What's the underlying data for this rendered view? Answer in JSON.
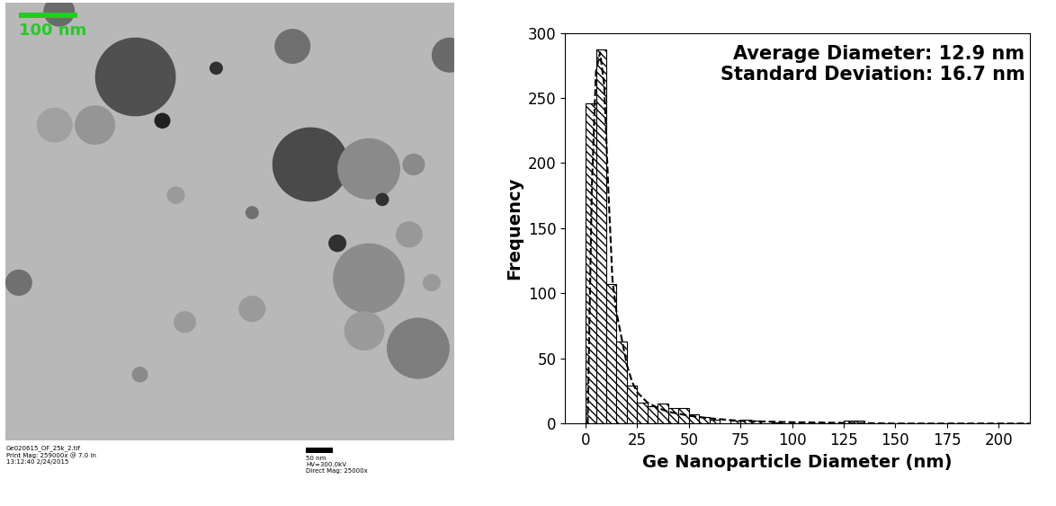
{
  "chart_data": {
    "type": "histogram",
    "x_label": "Ge Nanoparticle Diameter (nm)",
    "y_label": "Frequency",
    "annotations": [
      "Average Diameter: 12.9 nm",
      "Standard Deviation: 16.7 nm"
    ],
    "bins": [
      0,
      5,
      10,
      15,
      20,
      25,
      30,
      35,
      40,
      45,
      50,
      55,
      60,
      65,
      70,
      75,
      80,
      85,
      90,
      95,
      100,
      105,
      110,
      115,
      120,
      125,
      130,
      135
    ],
    "counts": [
      246,
      287,
      107,
      63,
      29,
      16,
      13,
      15,
      12,
      12,
      7,
      5,
      3,
      0,
      2,
      3,
      2,
      0,
      1,
      0,
      0,
      0,
      0,
      0,
      0,
      2,
      2
    ],
    "color": "#ffffff",
    "series": [
      {
        "type": "line",
        "line_style": "dashed",
        "color": "#000000",
        "x": [
          1,
          3,
          5,
          7,
          9,
          11,
          13,
          15,
          17.5,
          20,
          22.5,
          25,
          30,
          35,
          40,
          50,
          60,
          75,
          100,
          150,
          215
        ],
        "values": [
          0,
          180,
          270,
          285,
          260,
          180,
          110,
          85,
          65,
          45,
          32,
          24,
          16,
          12,
          9,
          6,
          4,
          2,
          1,
          0,
          0
        ]
      }
    ],
    "xlim": [
      -10,
      215
    ],
    "xticks": [
      0,
      25,
      50,
      75,
      100,
      125,
      150,
      175,
      200
    ],
    "ylim": [
      0,
      300
    ],
    "yticks": [
      0,
      50,
      100,
      150,
      200,
      250,
      300
    ],
    "grid": false
  },
  "image_panel": {
    "scale_bar": "100 nm",
    "footer_left": [
      "Ge020615_OF_25k_2.tif",
      "Print Mag: 259000x @ 7.0 in",
      "13:12:40 2/24/2015"
    ],
    "footer_right": [
      "50 nm",
      "HV=300.0kV",
      "Direct Mag: 25000x"
    ]
  }
}
